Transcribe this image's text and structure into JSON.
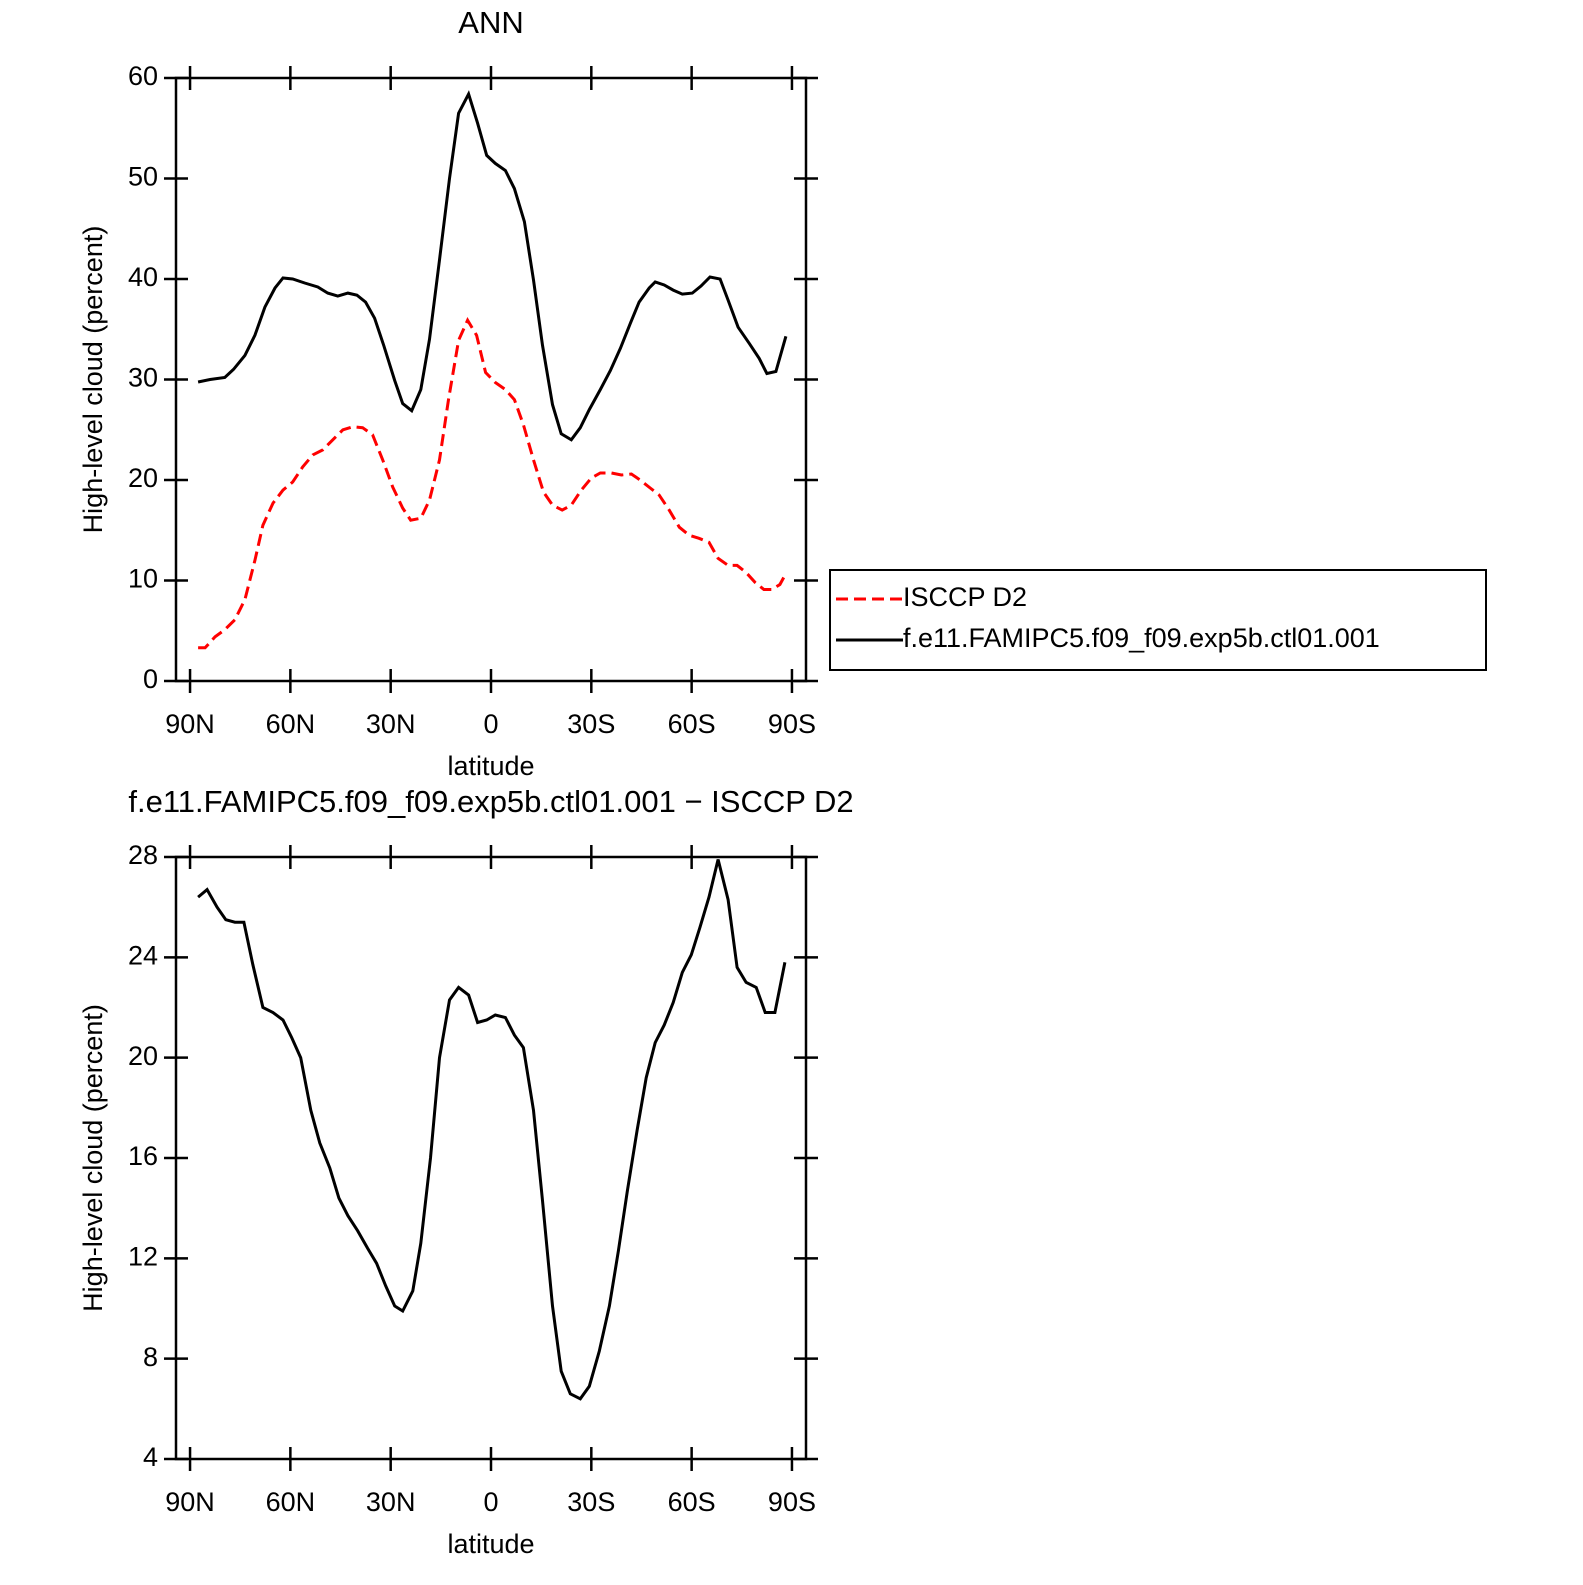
{
  "chart_data": [
    {
      "type": "line",
      "title": "ANN",
      "xlabel": "latitude",
      "ylabel": "High-level cloud (percent)",
      "xlim": [
        94.2,
        -94.2
      ],
      "ylim": [
        0,
        60
      ],
      "xticks": [
        {
          "value": 90,
          "label": "90N"
        },
        {
          "value": 60,
          "label": "60N"
        },
        {
          "value": 30,
          "label": "30N"
        },
        0,
        {
          "value": -30,
          "label": "30S"
        },
        {
          "value": -60,
          "label": "60S"
        },
        {
          "value": -90,
          "label": "90S"
        }
      ],
      "yticks": [
        0,
        10,
        20,
        30,
        40,
        50,
        60
      ],
      "legend": "right",
      "series": [
        {
          "name": "ISCCP D2",
          "color": "#ff0000",
          "linestyle": "dashed",
          "x": [
            87.6,
            85.5,
            82.5,
            79.6,
            76.6,
            73.6,
            70.6,
            68.2,
            65.2,
            62.2,
            59.3,
            56.3,
            53.3,
            50.3,
            47.3,
            44.3,
            41.3,
            38.4,
            35.4,
            32.4,
            29.4,
            26.4,
            24,
            21,
            18.4,
            15.4,
            12.7,
            9.7,
            7,
            4.3,
            1.6,
            -1.3,
            -4.3,
            -7,
            -9.7,
            -12.7,
            -15.7,
            -18.4,
            -21.3,
            -24,
            -27,
            -30,
            -32.7,
            -36,
            -39,
            -42,
            -44.6,
            -47.6,
            -50.3,
            -53.3,
            -56.3,
            -59.3,
            -62.2,
            -65.2,
            -67.9,
            -70.9,
            -73.6,
            -76.3,
            -79,
            -81.6,
            -84,
            -86.4,
            -88.2
          ],
          "values": [
            3.3,
            3.3,
            4.4,
            5.1,
            6.1,
            8.1,
            12.0,
            15.5,
            17.7,
            19.0,
            19.8,
            21.3,
            22.5,
            23.0,
            24.0,
            25.0,
            25.3,
            25.2,
            24.5,
            22.0,
            19.3,
            17.2,
            16.0,
            16.2,
            18.0,
            22.0,
            28.0,
            33.9,
            35.9,
            34.4,
            30.7,
            29.7,
            29.0,
            28.0,
            25.5,
            22.0,
            18.8,
            17.5,
            17.0,
            17.5,
            19.0,
            20.2,
            20.7,
            20.7,
            20.5,
            20.6,
            20.0,
            19.2,
            18.5,
            17.0,
            15.3,
            14.5,
            14.2,
            13.8,
            12.2,
            11.5,
            11.5,
            10.8,
            9.8,
            9.1,
            9.1,
            9.6,
            10.7
          ]
        },
        {
          "name": "f.e11.FAMIPC5.f09_f09.exp5b.ctl01.001",
          "color": "#000000",
          "linestyle": "solid",
          "x": [
            87.6,
            84,
            79.6,
            77,
            73.6,
            70.6,
            67.6,
            64.6,
            62.2,
            59.3,
            55.7,
            51.8,
            48.8,
            45.8,
            42.8,
            40.1,
            37.5,
            34.8,
            32.1,
            28.8,
            26.4,
            23.7,
            21,
            18.4,
            15.4,
            12.4,
            9.7,
            6.7,
            4,
            1.3,
            -1.3,
            -4.3,
            -7,
            -10,
            -12.7,
            -15.4,
            -18.4,
            -21,
            -24,
            -26.7,
            -29.4,
            -32.7,
            -35.7,
            -38.7,
            -41.7,
            -44.3,
            -47.3,
            -49.1,
            -51.8,
            -54.5,
            -57.2,
            -60.2,
            -62.8,
            -65.5,
            -68.5,
            -70.9,
            -73.9,
            -77.2,
            -80.2,
            -82.5,
            -85.2,
            -88.2
          ],
          "values": [
            29.75,
            30.0,
            30.2,
            31,
            32.4,
            34.4,
            37.2,
            39.1,
            40.1,
            40,
            39.6,
            39.2,
            38.6,
            38.3,
            38.6,
            38.4,
            37.7,
            36.1,
            33.4,
            29.9,
            27.6,
            26.9,
            29,
            34,
            41.9,
            50,
            56.5,
            58.4,
            55.5,
            52.3,
            51.5,
            50.8,
            49,
            45.7,
            39.9,
            33.4,
            27.5,
            24.6,
            24,
            25.2,
            27,
            29,
            30.9,
            33.1,
            35.6,
            37.7,
            39.1,
            39.7,
            39.4,
            38.9,
            38.5,
            38.6,
            39.3,
            40.2,
            40,
            37.9,
            35.2,
            33.6,
            32.1,
            30.6,
            30.8,
            34.3
          ]
        }
      ]
    },
    {
      "type": "line",
      "title": "f.e11.FAMIPC5.f09_f09.exp5b.ctl01.001 − ISCCP D2",
      "xlabel": "latitude",
      "ylabel": "High-level cloud (percent)",
      "xlim": [
        94.2,
        -94.2
      ],
      "ylim": [
        4,
        28
      ],
      "xticks": [
        {
          "value": 90,
          "label": "90N"
        },
        {
          "value": 60,
          "label": "60N"
        },
        {
          "value": 30,
          "label": "30N"
        },
        0,
        {
          "value": -30,
          "label": "30S"
        },
        {
          "value": -60,
          "label": "60S"
        },
        {
          "value": -90,
          "label": "90S"
        }
      ],
      "yticks": [
        4,
        8,
        12,
        16,
        20,
        24,
        28
      ],
      "series": [
        {
          "color": "#000000",
          "linestyle": "solid",
          "x": [
            87.6,
            84.9,
            81.9,
            79.3,
            76.6,
            73.9,
            71.2,
            68.2,
            65.2,
            62.2,
            59.6,
            56.9,
            53.9,
            51.2,
            48.2,
            45.5,
            42.8,
            39.9,
            36.9,
            34.2,
            31.5,
            28.8,
            26.4,
            23.4,
            21,
            18.1,
            15.4,
            12.4,
            9.7,
            6.7,
            4,
            1.3,
            -1.3,
            -4.3,
            -7,
            -9.7,
            -12.7,
            -15.4,
            -18.4,
            -21,
            -23.7,
            -26.7,
            -29.4,
            -32.4,
            -35.4,
            -38.1,
            -40.8,
            -43.7,
            -46.4,
            -49.1,
            -51.8,
            -54.5,
            -57.2,
            -59.9,
            -62.5,
            -65.2,
            -67.9,
            -70.9,
            -73.6,
            -76.3,
            -79.3,
            -82,
            -84.9,
            -87.9
          ],
          "values": [
            26.4,
            26.7,
            26.0,
            25.5,
            25.4,
            25.4,
            23.7,
            22.0,
            21.8,
            21.5,
            20.8,
            20.0,
            17.9,
            16.6,
            15.6,
            14.4,
            13.7,
            13.1,
            12.4,
            11.8,
            10.9,
            10.1,
            9.9,
            10.7,
            12.6,
            16.0,
            20.0,
            22.3,
            22.8,
            22.5,
            21.4,
            21.5,
            21.7,
            21.6,
            20.9,
            20.4,
            17.9,
            14.3,
            10.1,
            7.5,
            6.6,
            6.4,
            6.9,
            8.3,
            10.1,
            12.3,
            14.7,
            17.1,
            19.2,
            20.6,
            21.3,
            22.2,
            23.4,
            24.1,
            25.2,
            26.4,
            27.9,
            26.3,
            23.6,
            23.0,
            22.8,
            21.8,
            21.8,
            23.8
          ]
        }
      ]
    }
  ]
}
